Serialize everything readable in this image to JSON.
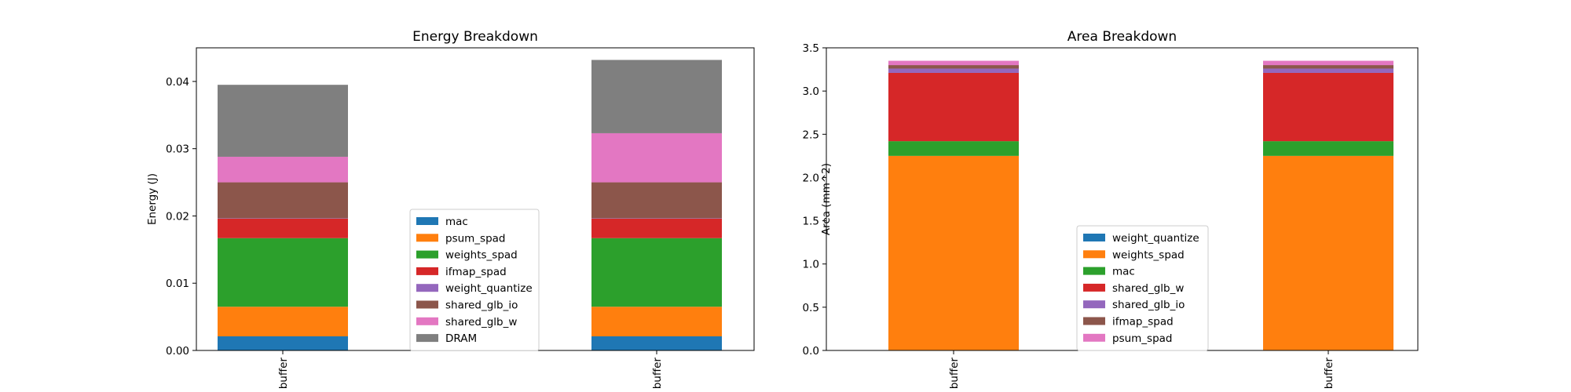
{
  "chart_data": [
    {
      "type": "bar",
      "stacked": true,
      "title": "Energy Breakdown",
      "xlabel": "",
      "ylabel": "Energy (J)",
      "ylim": [
        0,
        0.045
      ],
      "yticks": [
        0.0,
        0.01,
        0.02,
        0.03,
        0.04
      ],
      "ytick_labels": [
        "0.00",
        "0.01",
        "0.02",
        "0.03",
        "0.04"
      ],
      "categories": [
        "buffer",
        "buffer"
      ],
      "legend_position": "lower-center",
      "series": [
        {
          "name": "mac",
          "color": "#1f77b4",
          "values": [
            0.0021,
            0.0021
          ]
        },
        {
          "name": "psum_spad",
          "color": "#ff7f0e",
          "values": [
            0.0044,
            0.0044
          ]
        },
        {
          "name": "weights_spad",
          "color": "#2ca02c",
          "values": [
            0.0102,
            0.0102
          ]
        },
        {
          "name": "ifmap_spad",
          "color": "#d62728",
          "values": [
            0.0029,
            0.0029
          ]
        },
        {
          "name": "weight_quantize",
          "color": "#9467bd",
          "values": [
            5e-05,
            5e-05
          ]
        },
        {
          "name": "shared_glb_io",
          "color": "#8c564b",
          "values": [
            0.00535,
            0.00535
          ]
        },
        {
          "name": "shared_glb_w",
          "color": "#e377c2",
          "values": [
            0.0038,
            0.0073
          ]
        },
        {
          "name": "DRAM",
          "color": "#7f7f7f",
          "values": [
            0.0107,
            0.0109
          ]
        }
      ]
    },
    {
      "type": "bar",
      "stacked": true,
      "title": "Area Breakdown",
      "xlabel": "",
      "ylabel": "Area (mm^2)",
      "ylim": [
        0,
        3.5
      ],
      "yticks": [
        0.0,
        0.5,
        1.0,
        1.5,
        2.0,
        2.5,
        3.0,
        3.5
      ],
      "ytick_labels": [
        "0.0",
        "0.5",
        "1.0",
        "1.5",
        "2.0",
        "2.5",
        "3.0",
        "3.5"
      ],
      "categories": [
        "buffer",
        "buffer"
      ],
      "legend_position": "lower-center",
      "series": [
        {
          "name": "weight_quantize",
          "color": "#1f77b4",
          "values": [
            0.005,
            0.005
          ]
        },
        {
          "name": "weights_spad",
          "color": "#ff7f0e",
          "values": [
            2.245,
            2.245
          ]
        },
        {
          "name": "mac",
          "color": "#2ca02c",
          "values": [
            0.17,
            0.17
          ]
        },
        {
          "name": "shared_glb_w",
          "color": "#d62728",
          "values": [
            0.79,
            0.79
          ]
        },
        {
          "name": "shared_glb_io",
          "color": "#9467bd",
          "values": [
            0.05,
            0.05
          ]
        },
        {
          "name": "ifmap_spad",
          "color": "#8c564b",
          "values": [
            0.04,
            0.04
          ]
        },
        {
          "name": "psum_spad",
          "color": "#e377c2",
          "values": [
            0.05,
            0.05
          ]
        }
      ]
    }
  ]
}
